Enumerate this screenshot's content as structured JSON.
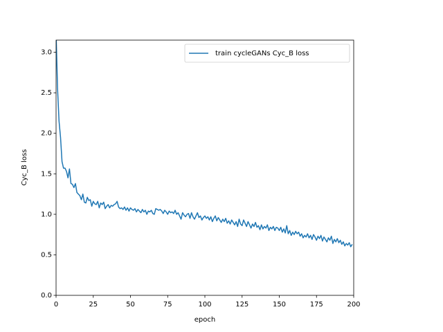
{
  "chart_data": {
    "type": "line",
    "xlabel": "epoch",
    "ylabel": "Cyc_B loss",
    "ylabel_color": "#1f77b4",
    "legend": "upper right",
    "x": [
      0,
      1,
      2,
      3,
      4,
      5,
      6,
      7,
      8,
      9,
      10,
      11,
      12,
      13,
      14,
      15,
      16,
      17,
      18,
      19,
      20,
      21,
      22,
      23,
      24,
      25,
      26,
      27,
      28,
      29,
      30,
      31,
      32,
      33,
      34,
      35,
      36,
      37,
      38,
      39,
      40,
      41,
      42,
      43,
      44,
      45,
      46,
      47,
      48,
      49,
      50,
      51,
      52,
      53,
      54,
      55,
      56,
      57,
      58,
      59,
      60,
      61,
      62,
      63,
      64,
      65,
      66,
      67,
      68,
      69,
      70,
      71,
      72,
      73,
      74,
      75,
      76,
      77,
      78,
      79,
      80,
      81,
      82,
      83,
      84,
      85,
      86,
      87,
      88,
      89,
      90,
      91,
      92,
      93,
      94,
      95,
      96,
      97,
      98,
      99,
      100,
      101,
      102,
      103,
      104,
      105,
      106,
      107,
      108,
      109,
      110,
      111,
      112,
      113,
      114,
      115,
      116,
      117,
      118,
      119,
      120,
      121,
      122,
      123,
      124,
      125,
      126,
      127,
      128,
      129,
      130,
      131,
      132,
      133,
      134,
      135,
      136,
      137,
      138,
      139,
      140,
      141,
      142,
      143,
      144,
      145,
      146,
      147,
      148,
      149,
      150,
      151,
      152,
      153,
      154,
      155,
      156,
      157,
      158,
      159,
      160,
      161,
      162,
      163,
      164,
      165,
      166,
      167,
      168,
      169,
      170,
      171,
      172,
      173,
      174,
      175,
      176,
      177,
      178,
      179,
      180,
      181,
      182,
      183,
      184,
      185,
      186,
      187,
      188,
      189,
      190,
      191,
      192,
      193,
      194,
      195,
      196,
      197,
      198,
      199
    ],
    "series": [
      {
        "name": "train cycleGANs Cyc_B loss",
        "color": "#1f77b4",
        "values": [
          3.25,
          2.55,
          2.15,
          1.95,
          1.65,
          1.57,
          1.57,
          1.53,
          1.45,
          1.56,
          1.38,
          1.37,
          1.33,
          1.38,
          1.27,
          1.25,
          1.23,
          1.18,
          1.25,
          1.15,
          1.14,
          1.21,
          1.17,
          1.18,
          1.1,
          1.16,
          1.13,
          1.12,
          1.16,
          1.08,
          1.14,
          1.12,
          1.15,
          1.07,
          1.1,
          1.12,
          1.08,
          1.11,
          1.1,
          1.12,
          1.13,
          1.16,
          1.09,
          1.07,
          1.08,
          1.06,
          1.09,
          1.05,
          1.08,
          1.04,
          1.08,
          1.06,
          1.05,
          1.07,
          1.03,
          1.06,
          1.04,
          1.02,
          1.06,
          1.03,
          1.05,
          1.0,
          1.04,
          1.03,
          1.05,
          1.01,
          1.0,
          1.07,
          1.06,
          1.05,
          1.06,
          1.04,
          1.01,
          1.05,
          1.03,
          1.0,
          1.04,
          1.02,
          1.03,
          1.01,
          1.05,
          1.0,
          1.02,
          0.98,
          0.94,
          1.02,
          0.99,
          0.97,
          1.0,
          1.01,
          0.95,
          1.02,
          0.97,
          0.94,
          0.98,
          1.02,
          0.96,
          0.98,
          0.93,
          0.96,
          0.98,
          0.95,
          0.97,
          0.93,
          0.97,
          0.91,
          0.95,
          0.98,
          0.92,
          0.96,
          0.93,
          0.9,
          0.94,
          0.91,
          0.95,
          0.89,
          0.92,
          0.88,
          0.93,
          0.9,
          0.87,
          0.91,
          0.85,
          0.94,
          0.88,
          0.86,
          0.93,
          0.89,
          0.85,
          0.91,
          0.87,
          0.83,
          0.88,
          0.85,
          0.9,
          0.84,
          0.86,
          0.81,
          0.87,
          0.82,
          0.85,
          0.83,
          0.87,
          0.8,
          0.84,
          0.82,
          0.85,
          0.8,
          0.84,
          0.83,
          0.8,
          0.84,
          0.78,
          0.82,
          0.77,
          0.86,
          0.76,
          0.8,
          0.74,
          0.78,
          0.75,
          0.79,
          0.76,
          0.78,
          0.73,
          0.76,
          0.71,
          0.74,
          0.72,
          0.76,
          0.71,
          0.74,
          0.69,
          0.75,
          0.72,
          0.68,
          0.73,
          0.7,
          0.74,
          0.67,
          0.72,
          0.69,
          0.66,
          0.71,
          0.68,
          0.73,
          0.64,
          0.69,
          0.66,
          0.7,
          0.65,
          0.68,
          0.63,
          0.66,
          0.61,
          0.64,
          0.62,
          0.65,
          0.6,
          0.63
        ]
      }
    ],
    "xlim": [
      0,
      200
    ],
    "ylim": [
      0,
      3.15
    ],
    "xticks": [
      0,
      25,
      50,
      75,
      100,
      125,
      150,
      175,
      200
    ],
    "yticks": [
      {
        "value": 0,
        "label": "0.0"
      },
      {
        "value": 0.5,
        "label": "0.5"
      },
      {
        "value": 1,
        "label": "1.0"
      },
      {
        "value": 1.5,
        "label": "1.5"
      },
      {
        "value": 2,
        "label": "2.0"
      },
      {
        "value": 2.5,
        "label": "2.5"
      },
      {
        "value": 3,
        "label": "3.0"
      }
    ]
  }
}
